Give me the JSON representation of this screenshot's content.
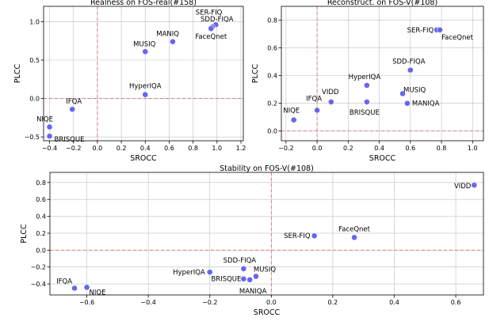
{
  "chart_data": [
    {
      "type": "scatter",
      "title": "Realness on FOS-real(#158)",
      "xlabel": "SROCC",
      "ylabel": "PLCC",
      "xlim": [
        -0.45,
        1.22
      ],
      "ylim": [
        -0.55,
        1.2
      ],
      "xticks": [
        -0.4,
        -0.2,
        0.0,
        0.2,
        0.4,
        0.6,
        0.8,
        1.0,
        1.2
      ],
      "yticks": [
        -0.5,
        0.0,
        0.5,
        1.0
      ],
      "xtick_labels": [
        "−0.4",
        "−0.2",
        "0.0",
        "0.2",
        "0.4",
        "0.6",
        "0.8",
        "1.0",
        "1.2"
      ],
      "ytick_labels": [
        "−0.5",
        "0.0",
        "0.5",
        "1.0"
      ],
      "grid": true,
      "reference_lines": {
        "x": 0.0,
        "y": 0.0
      },
      "point_color": "#6666ee",
      "ref_color": "#d97070",
      "points": [
        {
          "label": "SER-FIQ",
          "x": 0.99,
          "y": 0.96,
          "anchor": "end",
          "dx": 8,
          "dy": -13
        },
        {
          "label": "SDD-FIQA",
          "x": 0.96,
          "y": 0.93,
          "anchor": "middle",
          "dx": 6,
          "dy": -7
        },
        {
          "label": "FaceQnet",
          "x": 0.95,
          "y": 0.91,
          "anchor": "middle",
          "dx": 0,
          "dy": 13
        },
        {
          "label": "MANIQ",
          "x": 0.63,
          "y": 0.74,
          "anchor": "end",
          "dx": 8,
          "dy": -7
        },
        {
          "label": "MUSIQ",
          "x": 0.4,
          "y": 0.61,
          "anchor": "middle",
          "dx": -1,
          "dy": -7
        },
        {
          "label": "HyperIQA",
          "x": 0.4,
          "y": 0.05,
          "anchor": "middle",
          "dx": 0,
          "dy": -8
        },
        {
          "label": "IFQA",
          "x": -0.21,
          "y": -0.14,
          "anchor": "middle",
          "dx": 2,
          "dy": -7
        },
        {
          "label": "NIQE",
          "x": -0.4,
          "y": -0.37,
          "anchor": "middle",
          "dx": -6,
          "dy": -7
        },
        {
          "label": "BRISQUE",
          "x": -0.4,
          "y": -0.49,
          "anchor": "start",
          "dx": 6,
          "dy": 7
        }
      ]
    },
    {
      "type": "scatter",
      "title": "Reconstruct. on FOS-V(#108)",
      "xlabel": "SROCC",
      "ylabel": "PLCC",
      "xlim": [
        -0.23,
        1.07
      ],
      "ylim": [
        -0.07,
        0.9
      ],
      "xticks": [
        -0.2,
        0.0,
        0.2,
        0.4,
        0.6,
        0.8,
        1.0
      ],
      "yticks": [
        0.0,
        0.2,
        0.4,
        0.6,
        0.8
      ],
      "xtick_labels": [
        "−0.2",
        "0.0",
        "0.2",
        "0.4",
        "0.6",
        "0.8",
        "1.0"
      ],
      "ytick_labels": [
        "0.0",
        "0.2",
        "0.4",
        "0.6",
        "0.8"
      ],
      "grid": true,
      "reference_lines": {
        "x": 0.0,
        "y": 0.0
      },
      "point_color": "#6666ee",
      "ref_color": "#d97070",
      "points": [
        {
          "label": "SER-FIQ",
          "x": 0.77,
          "y": 0.73,
          "anchor": "end",
          "dx": -4,
          "dy": 3
        },
        {
          "label": "FaceQnet",
          "x": 0.79,
          "y": 0.73,
          "anchor": "start",
          "dx": 2,
          "dy": 12
        },
        {
          "label": "SDD-FIQA",
          "x": 0.6,
          "y": 0.44,
          "anchor": "middle",
          "dx": -2,
          "dy": -8
        },
        {
          "label": "HyperIQA",
          "x": 0.32,
          "y": 0.33,
          "anchor": "middle",
          "dx": -3,
          "dy": -8
        },
        {
          "label": "MUSIQ",
          "x": 0.55,
          "y": 0.27,
          "anchor": "start",
          "dx": 1,
          "dy": -2
        },
        {
          "label": "MANIQA",
          "x": 0.58,
          "y": 0.2,
          "anchor": "start",
          "dx": 6,
          "dy": 3
        },
        {
          "label": "BRISQUE",
          "x": 0.32,
          "y": 0.21,
          "anchor": "middle",
          "dx": -3,
          "dy": 16
        },
        {
          "label": "VIDD",
          "x": 0.09,
          "y": 0.21,
          "anchor": "middle",
          "dx": -1,
          "dy": -10
        },
        {
          "label": "IFQA",
          "x": 0.0,
          "y": 0.15,
          "anchor": "middle",
          "dx": -4,
          "dy": -12
        },
        {
          "label": "NIQE",
          "x": -0.15,
          "y": 0.08,
          "anchor": "middle",
          "dx": -3,
          "dy": -9
        }
      ]
    },
    {
      "type": "scatter",
      "title": "Stability on FOS-V(#108)",
      "xlabel": "SROCC",
      "ylabel": "PLCC",
      "xlim": [
        -0.72,
        0.69
      ],
      "ylim": [
        -0.53,
        0.92
      ],
      "xticks": [
        -0.6,
        -0.4,
        -0.2,
        0.0,
        0.2,
        0.4,
        0.6
      ],
      "yticks": [
        -0.4,
        -0.2,
        0.0,
        0.2,
        0.4,
        0.6,
        0.8
      ],
      "xtick_labels": [
        "−0.6",
        "−0.4",
        "−0.2",
        "0.0",
        "0.2",
        "0.4",
        "0.6"
      ],
      "ytick_labels": [
        "−0.4",
        "−0.2",
        "0.0",
        "0.2",
        "0.4",
        "0.6",
        "0.8"
      ],
      "grid": true,
      "reference_lines": {
        "x": 0.0,
        "y": 0.0
      },
      "point_color": "#6666ee",
      "ref_color": "#d97070",
      "points": [
        {
          "label": "VIDD",
          "x": 0.66,
          "y": 0.77,
          "anchor": "end",
          "dx": -4,
          "dy": 4
        },
        {
          "label": "FaceQnet",
          "x": 0.27,
          "y": 0.15,
          "anchor": "middle",
          "dx": 0,
          "dy": -8
        },
        {
          "label": "SER-FIQ",
          "x": 0.14,
          "y": 0.17,
          "anchor": "end",
          "dx": -5,
          "dy": 3
        },
        {
          "label": "SDD-FIQA",
          "x": -0.09,
          "y": -0.22,
          "anchor": "middle",
          "dx": -5,
          "dy": -8
        },
        {
          "label": "MUSIQ",
          "x": -0.05,
          "y": -0.31,
          "anchor": "start",
          "dx": -3,
          "dy": -6
        },
        {
          "label": "BRISQUE",
          "x": -0.09,
          "y": -0.34,
          "anchor": "end",
          "dx": -3,
          "dy": 3
        },
        {
          "label": "MANIQA",
          "x": -0.07,
          "y": -0.35,
          "anchor": "middle",
          "dx": 4,
          "dy": 17
        },
        {
          "label": "HyperIQA",
          "x": -0.2,
          "y": -0.26,
          "anchor": "end",
          "dx": -6,
          "dy": 3
        },
        {
          "label": "IFQA",
          "x": -0.64,
          "y": -0.45,
          "anchor": "end",
          "dx": -3,
          "dy": -6
        },
        {
          "label": "NIQE",
          "x": -0.6,
          "y": -0.44,
          "anchor": "start",
          "dx": 3,
          "dy": 9
        }
      ]
    }
  ]
}
